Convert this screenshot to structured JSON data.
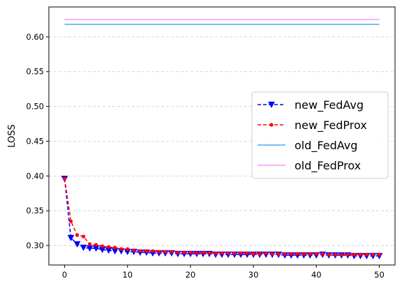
{
  "chart_data": {
    "type": "line",
    "title": "",
    "xlabel": "",
    "ylabel": "LOSS",
    "xlim": [
      -2.5,
      52.5
    ],
    "ylim": [
      0.272,
      0.643
    ],
    "xticks": [
      0,
      10,
      20,
      30,
      40,
      50
    ],
    "yticks": [
      0.3,
      0.35,
      0.4,
      0.45,
      0.5,
      0.55,
      0.6
    ],
    "grid": "horizontal-dashed",
    "legend_position": "center-right",
    "series": [
      {
        "name": "new_FedAvg",
        "color": "#0000ff",
        "style": "dashed",
        "marker": "triangle-down",
        "x": [
          0,
          1,
          2,
          3,
          4,
          5,
          6,
          7,
          8,
          9,
          10,
          11,
          12,
          13,
          14,
          15,
          16,
          17,
          18,
          19,
          20,
          21,
          22,
          23,
          24,
          25,
          26,
          27,
          28,
          29,
          30,
          31,
          32,
          33,
          34,
          35,
          36,
          37,
          38,
          39,
          40,
          41,
          42,
          43,
          44,
          45,
          46,
          47,
          48,
          49,
          50
        ],
        "values": [
          0.396,
          0.311,
          0.302,
          0.297,
          0.296,
          0.296,
          0.294,
          0.293,
          0.292,
          0.292,
          0.291,
          0.291,
          0.29,
          0.29,
          0.289,
          0.289,
          0.289,
          0.289,
          0.288,
          0.288,
          0.288,
          0.288,
          0.288,
          0.288,
          0.287,
          0.287,
          0.287,
          0.287,
          0.287,
          0.287,
          0.287,
          0.287,
          0.287,
          0.287,
          0.287,
          0.286,
          0.286,
          0.286,
          0.286,
          0.286,
          0.286,
          0.287,
          0.286,
          0.286,
          0.286,
          0.286,
          0.285,
          0.285,
          0.285,
          0.285,
          0.285
        ]
      },
      {
        "name": "new_FedProx",
        "color": "#ff0000",
        "style": "dashed",
        "marker": "circle",
        "x": [
          0,
          1,
          2,
          3,
          4,
          5,
          6,
          7,
          8,
          9,
          10,
          11,
          12,
          13,
          14,
          15,
          16,
          17,
          18,
          19,
          20,
          21,
          22,
          23,
          24,
          25,
          26,
          27,
          28,
          29,
          30,
          31,
          32,
          33,
          34,
          35,
          36,
          37,
          38,
          39,
          40,
          41,
          42,
          43,
          44,
          45,
          46,
          47,
          48,
          49,
          50
        ],
        "values": [
          0.396,
          0.335,
          0.315,
          0.313,
          0.302,
          0.301,
          0.299,
          0.298,
          0.297,
          0.295,
          0.295,
          0.293,
          0.292,
          0.292,
          0.292,
          0.291,
          0.291,
          0.291,
          0.29,
          0.29,
          0.29,
          0.289,
          0.29,
          0.289,
          0.289,
          0.289,
          0.289,
          0.289,
          0.289,
          0.289,
          0.288,
          0.288,
          0.289,
          0.288,
          0.288,
          0.288,
          0.288,
          0.288,
          0.288,
          0.288,
          0.288,
          0.288,
          0.287,
          0.287,
          0.287,
          0.287,
          0.287,
          0.287,
          0.287,
          0.287,
          0.287
        ]
      },
      {
        "name": "old_FedAvg",
        "color": "#4aa8f0",
        "style": "solid",
        "marker": "none",
        "x": [
          0,
          50
        ],
        "values": [
          0.618,
          0.618
        ]
      },
      {
        "name": "old_FedProx",
        "color": "#f59af5",
        "style": "solid",
        "marker": "none",
        "x": [
          0,
          50
        ],
        "values": [
          0.625,
          0.625
        ]
      }
    ]
  }
}
